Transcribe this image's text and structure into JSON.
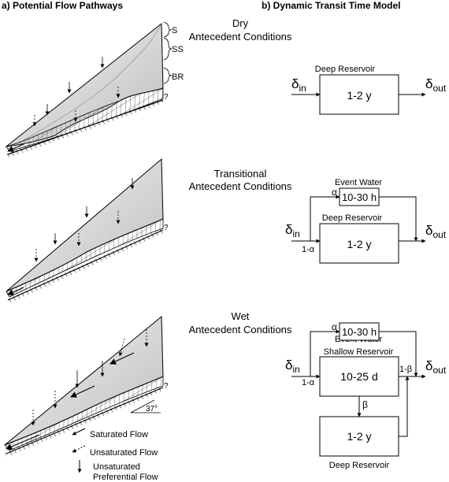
{
  "panel_a": {
    "title": "a) Potential Flow Pathways",
    "layers": {
      "s": "S",
      "ss": "SS",
      "br": "BR",
      "unknown": "?"
    },
    "slope_angle": "37°",
    "legend": {
      "saturated": "Saturated Flow",
      "unsaturated": "Unsaturated Flow",
      "preferential_1": "Unsaturated",
      "preferential_2": "Preferential Flow"
    }
  },
  "panel_b": {
    "title": "b) Dynamic Transit Time Model"
  },
  "conditions": [
    {
      "line1": "Dry",
      "line2": "Antecedent Conditions"
    },
    {
      "line1": "Transitional",
      "line2": "Antecedent Conditions"
    },
    {
      "line1": "Wet",
      "line2": "Antecedent Conditions"
    }
  ],
  "model": {
    "delta_in": "δ",
    "sub_in": "in",
    "delta_out": "δ",
    "sub_out": "out",
    "deep_reservoir": "Deep Reservoir",
    "deep_time": "1-2 y",
    "event_water": "Event Water",
    "event_time": "10-30 h",
    "alpha": "α",
    "one_minus_alpha": "1-α",
    "shallow_reservoir": "Shallow Reservoir",
    "shallow_time": "10-25 d",
    "beta": "β",
    "one_minus_beta": "1-β"
  }
}
